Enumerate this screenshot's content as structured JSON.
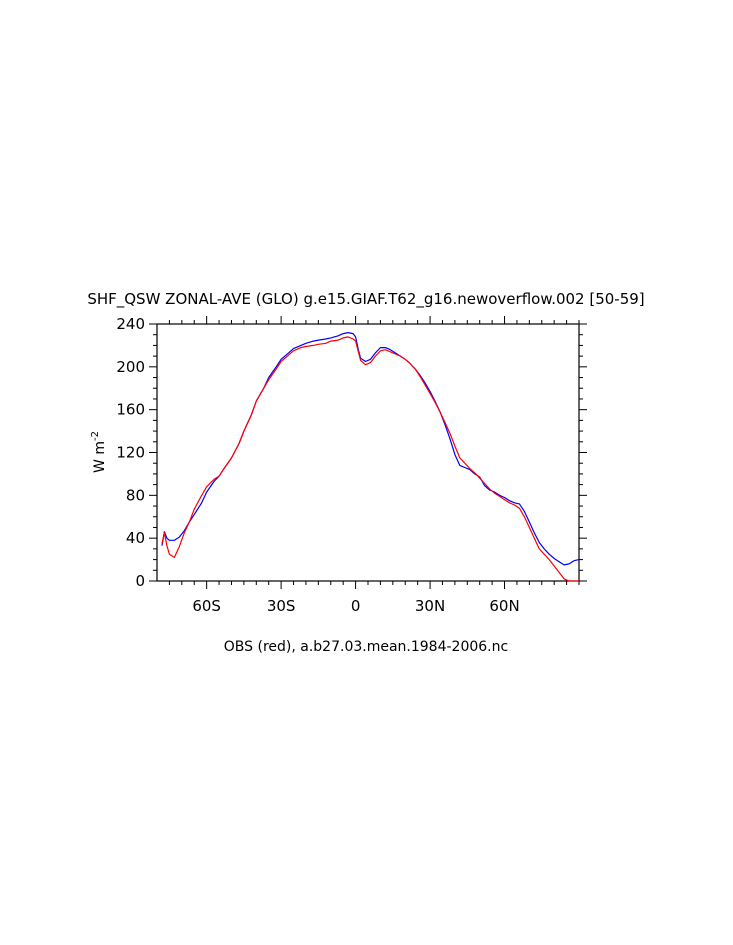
{
  "chart_data": {
    "type": "line",
    "title": "SHF_QSW ZONAL-AVE (GLO) g.e15.GIAF.T62_g16.newoverflow.002 [50-59]",
    "xlabel": "OBS (red), a.b27.03.mean.1984-2006.nc",
    "ylabel_main": "W m",
    "ylabel_sup": "-2",
    "xlim": [
      -80,
      90
    ],
    "ylim": [
      0,
      240
    ],
    "yticks": [
      0,
      40,
      80,
      120,
      160,
      200,
      240
    ],
    "xticks": [
      {
        "value": -60,
        "label": "60S"
      },
      {
        "value": -30,
        "label": "30S"
      },
      {
        "value": 0,
        "label": "0"
      },
      {
        "value": 30,
        "label": "30N"
      },
      {
        "value": 60,
        "label": "60N"
      }
    ],
    "series": [
      {
        "color": "#0000ff",
        "x": [
          -78,
          -77,
          -76,
          -75,
          -73,
          -71,
          -69,
          -67,
          -65,
          -62,
          -60,
          -57,
          -55,
          -53,
          -50,
          -47,
          -45,
          -42,
          -40,
          -37,
          -35,
          -32,
          -30,
          -27,
          -25,
          -22,
          -20,
          -17,
          -15,
          -12,
          -10,
          -7,
          -5,
          -3,
          -1,
          0,
          1,
          2,
          4,
          6,
          8,
          10,
          12,
          14,
          16,
          18,
          20,
          22,
          24,
          26,
          28,
          30,
          32,
          34,
          36,
          38,
          40,
          42,
          44,
          46,
          48,
          50,
          52,
          54,
          56,
          58,
          60,
          62,
          64,
          66,
          68,
          70,
          72,
          74,
          76,
          78,
          80,
          82,
          84,
          86,
          88,
          90
        ],
        "y": [
          33,
          46,
          40,
          38,
          38,
          41,
          47,
          55,
          62,
          73,
          83,
          93,
          98,
          105,
          115,
          128,
          140,
          155,
          168,
          180,
          190,
          200,
          207,
          213,
          217,
          220,
          222,
          224,
          225,
          226,
          227,
          229,
          231,
          232,
          231,
          228,
          217,
          208,
          205,
          207,
          213,
          218,
          218,
          216,
          213,
          210,
          207,
          203,
          198,
          192,
          185,
          177,
          168,
          158,
          146,
          133,
          118,
          108,
          106,
          104,
          100,
          97,
          89,
          85,
          83,
          80,
          78,
          75,
          73,
          72,
          65,
          55,
          45,
          36,
          30,
          25,
          21,
          18,
          15,
          16,
          19,
          20
        ]
      },
      {
        "color": "#ff0000",
        "x": [
          -78,
          -77,
          -76,
          -75,
          -73,
          -71,
          -69,
          -67,
          -65,
          -62,
          -60,
          -57,
          -55,
          -53,
          -50,
          -47,
          -45,
          -42,
          -40,
          -37,
          -35,
          -32,
          -30,
          -27,
          -25,
          -22,
          -20,
          -17,
          -15,
          -12,
          -10,
          -7,
          -5,
          -3,
          -1,
          0,
          1,
          2,
          4,
          6,
          8,
          10,
          12,
          14,
          16,
          18,
          20,
          22,
          24,
          26,
          28,
          30,
          32,
          34,
          36,
          38,
          40,
          42,
          44,
          46,
          48,
          50,
          52,
          54,
          56,
          58,
          60,
          62,
          64,
          66,
          68,
          70,
          72,
          74,
          76,
          78,
          80,
          82,
          84,
          86,
          88,
          90
        ],
        "y": [
          35,
          45,
          33,
          25,
          22,
          32,
          45,
          55,
          67,
          80,
          88,
          95,
          98,
          105,
          115,
          128,
          140,
          155,
          168,
          180,
          188,
          198,
          205,
          211,
          215,
          218,
          219,
          220,
          221,
          222,
          224,
          225,
          227,
          228,
          226,
          224,
          215,
          206,
          202,
          204,
          210,
          215,
          216,
          214,
          212,
          210,
          207,
          203,
          198,
          191,
          183,
          175,
          167,
          158,
          148,
          138,
          126,
          115,
          110,
          105,
          101,
          96,
          91,
          86,
          82,
          79,
          76,
          73,
          71,
          68,
          60,
          50,
          40,
          30,
          25,
          20,
          14,
          8,
          2,
          0,
          0,
          0
        ]
      }
    ]
  }
}
